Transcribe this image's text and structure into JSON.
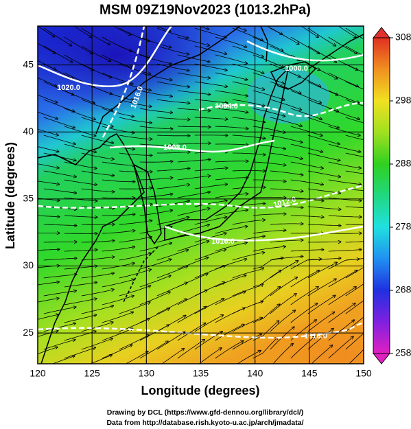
{
  "map": {
    "title": "MSM 09Z19Nov2023 (1013.2hPa)",
    "xlabel": "Longitude (degrees)",
    "ylabel": "Latitude  (degrees)",
    "xlim": [
      120,
      150
    ],
    "ylim": [
      22.7,
      47.9
    ],
    "xticks": [
      120,
      125,
      130,
      135,
      140,
      145,
      150
    ],
    "yticks": [
      25,
      30,
      35,
      40,
      45
    ],
    "grid": true,
    "colorbar": {
      "lim": [
        258,
        308
      ],
      "ticks": [
        258,
        268,
        278,
        288,
        298,
        308
      ]
    },
    "contours": [
      {
        "value": 1020,
        "label": "1020.0"
      },
      {
        "value": 1016,
        "label": "1016.0"
      },
      {
        "value": 1000,
        "label": "1000.0"
      },
      {
        "value": 1004,
        "label": "1004.0"
      },
      {
        "value": 1008,
        "label": "1008.0"
      },
      {
        "value": 1012,
        "label": "1012.0"
      },
      {
        "value": 1016,
        "label": "1016.0"
      },
      {
        "value": 1016,
        "label": "1016.0"
      }
    ],
    "footer": [
      "Drawing by DCL (https://www.gfd-dennou.org/library/dcl/)",
      "Data from http://database.rish.kyoto-u.ac.jp/arch/jmadata/"
    ]
  }
}
